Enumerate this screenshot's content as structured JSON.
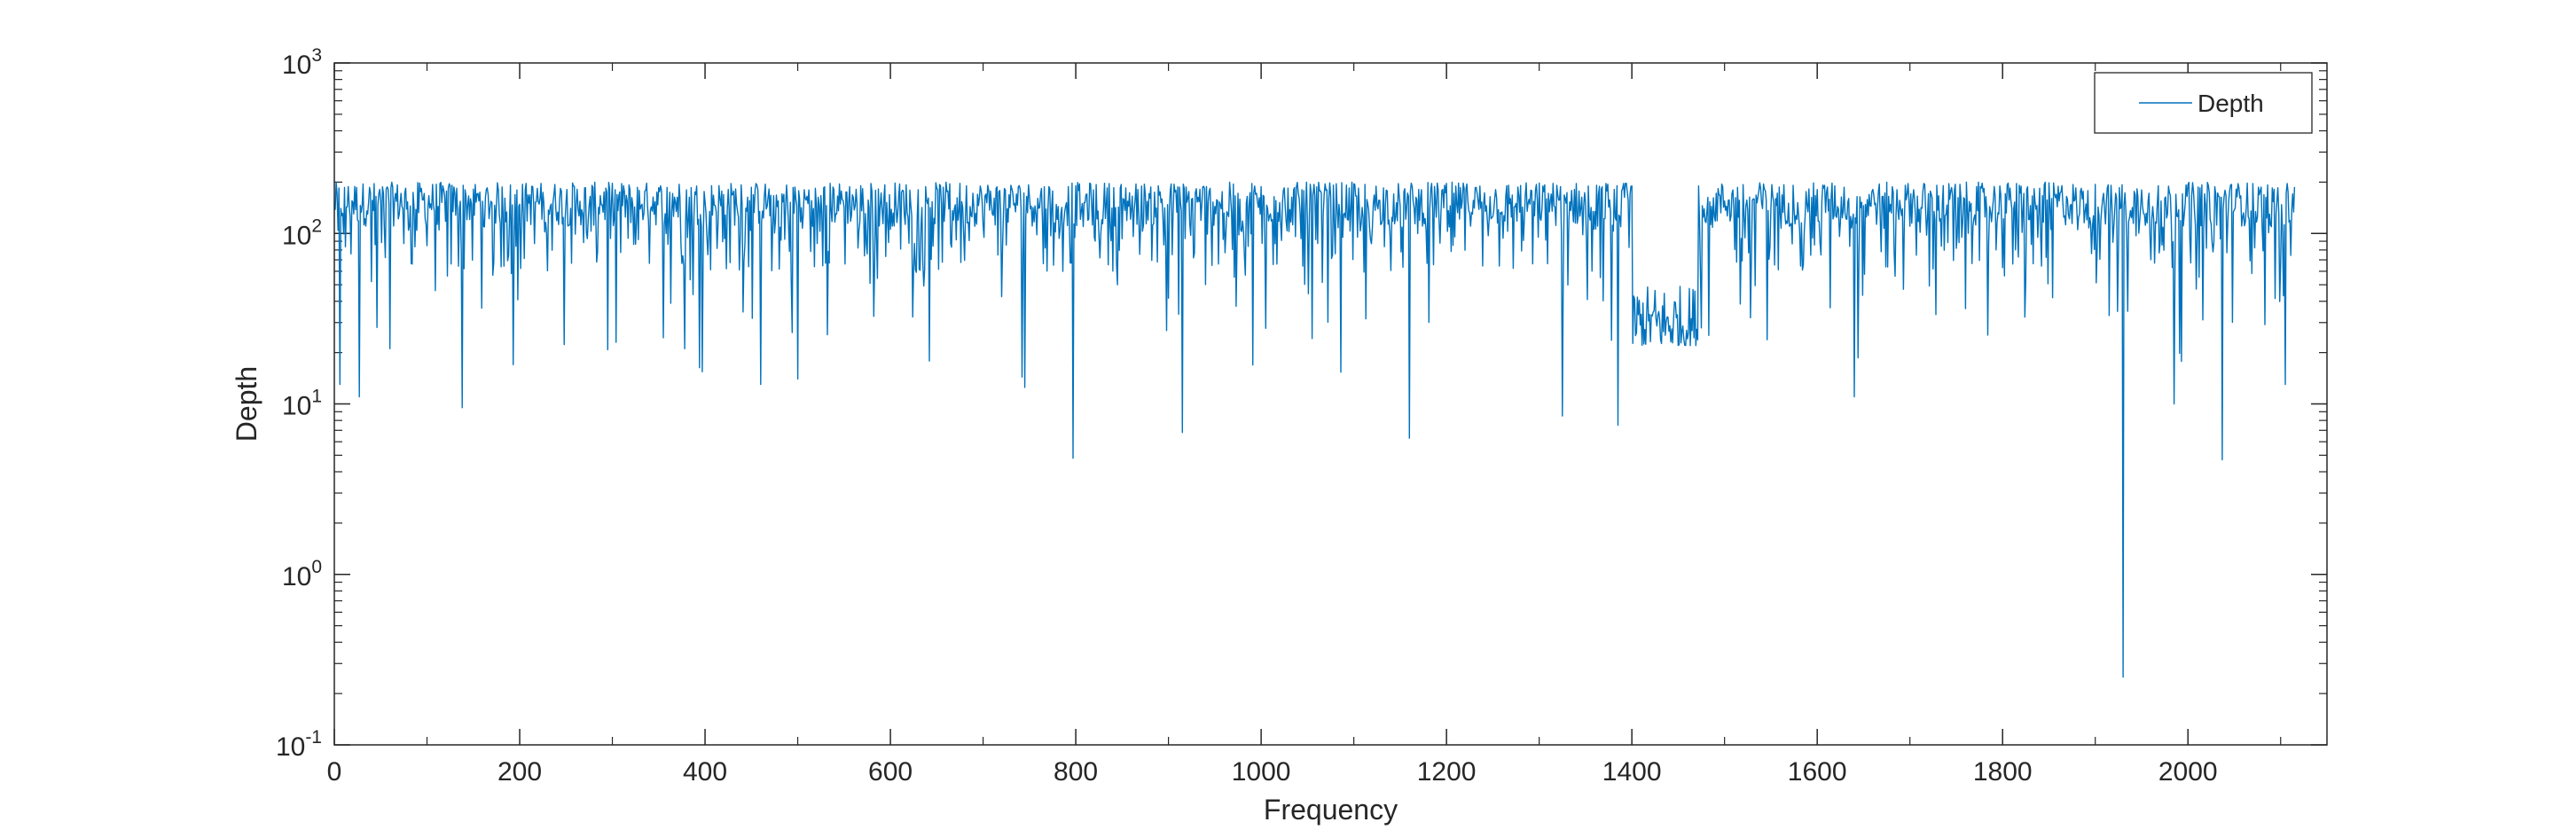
{
  "chart_data": {
    "type": "line",
    "title": "",
    "xlabel": "Frequency",
    "ylabel": "Depth",
    "yscale": "log",
    "xlim": [
      0,
      2150
    ],
    "ylim": [
      0.1,
      1000
    ],
    "x_ticks": [
      0,
      200,
      400,
      600,
      800,
      1000,
      1200,
      1400,
      1600,
      1800,
      2000
    ],
    "y_ticks": [
      {
        "value": 0.1,
        "base": "10",
        "exp": "-1"
      },
      {
        "value": 1,
        "base": "10",
        "exp": "0"
      },
      {
        "value": 10,
        "base": "10",
        "exp": "1"
      },
      {
        "value": 100,
        "base": "10",
        "exp": "2"
      },
      {
        "value": 1000,
        "base": "10",
        "exp": "3"
      }
    ],
    "grid": false,
    "legend_position": "top-right",
    "series": [
      {
        "name": "Depth",
        "color": "#0072BD",
        "x_range": [
          1,
          2115
        ],
        "typical_range": [
          70,
          200
        ],
        "notable_points": [
          {
            "x": 6,
            "y": 13
          },
          {
            "x": 27,
            "y": 11
          },
          {
            "x": 138,
            "y": 9.5
          },
          {
            "x": 304,
            "y": 23
          },
          {
            "x": 460,
            "y": 13
          },
          {
            "x": 500,
            "y": 14
          },
          {
            "x": 745,
            "y": 12.5
          },
          {
            "x": 797,
            "y": 4.8
          },
          {
            "x": 915,
            "y": 6.8
          },
          {
            "x": 1160,
            "y": 6.3
          },
          {
            "x": 1325,
            "y": 8.5
          },
          {
            "x": 1385,
            "y": 7.5
          },
          {
            "x": 1640,
            "y": 11
          },
          {
            "x": 1930,
            "y": 0.25
          },
          {
            "x": 1985,
            "y": 10
          },
          {
            "x": 2037,
            "y": 4.7
          },
          {
            "x": 2105,
            "y": 13
          }
        ],
        "low_plateau": {
          "x_start": 1400,
          "x_end": 1472,
          "y_low": 22,
          "y_high": 50
        }
      }
    ]
  }
}
